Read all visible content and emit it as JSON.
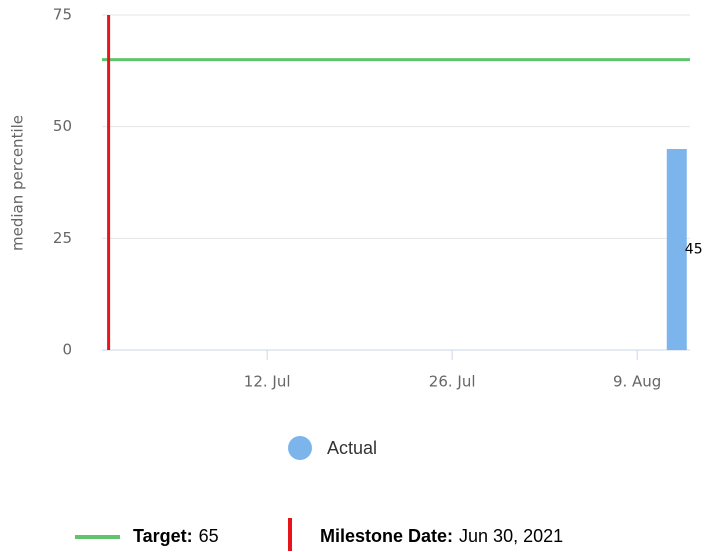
{
  "chart_data": {
    "type": "bar",
    "y_label": "median percentile",
    "x": [
      "2021-08-12"
    ],
    "series": [
      {
        "name": "Actual",
        "color": "#7cb5ec",
        "values": [
          45
        ]
      }
    ],
    "xlim": [
      "2021-06-29T12:00",
      "2021-08-13"
    ],
    "xticks": [
      {
        "value": "2021-07-12",
        "label": "12. Jul"
      },
      {
        "value": "2021-07-26",
        "label": "26. Jul"
      },
      {
        "value": "2021-08-09",
        "label": "9. Aug"
      }
    ],
    "ylim": [
      0,
      75
    ],
    "yticks": [
      0,
      25,
      50,
      75
    ],
    "grid": true,
    "target": {
      "label": "Target:",
      "value": 65,
      "color": "#5fc46b"
    },
    "milestone": {
      "label": "Milestone Date:",
      "date": "Jun 30, 2021",
      "color": "#e8141b"
    }
  }
}
